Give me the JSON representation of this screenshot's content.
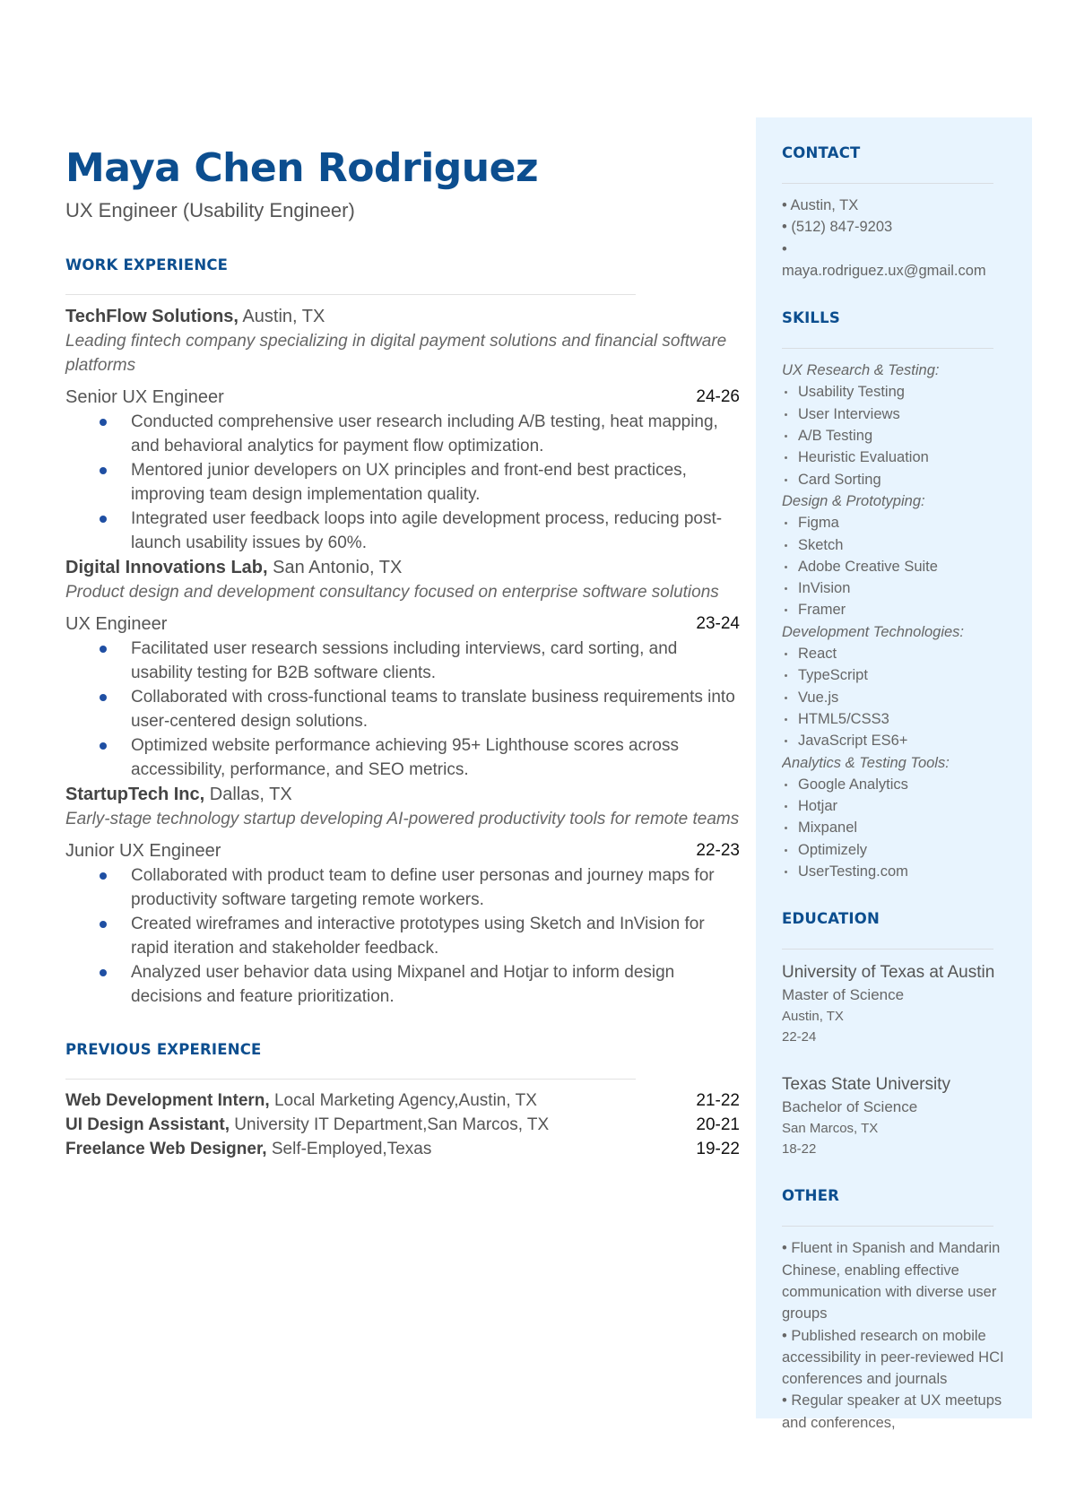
{
  "header": {
    "name": "Maya Chen Rodriguez",
    "title": "UX Engineer (Usability Engineer)"
  },
  "work_experience": {
    "title": "WORK EXPERIENCE",
    "jobs": [
      {
        "company": "TechFlow Solutions,",
        "location": " Austin, TX",
        "description": "Leading fintech company specializing in digital payment solutions and financial software platforms",
        "role": "Senior UX Engineer",
        "dates": "24-26",
        "bullets": [
          "Conducted comprehensive user research including A/B testing, heat mapping, and behavioral analytics for payment flow optimization.",
          "Mentored junior developers on UX principles and front-end best practices, improving team design implementation quality.",
          "Integrated user feedback loops into agile development process, reducing post-launch usability issues by 60%."
        ]
      },
      {
        "company": "Digital Innovations Lab,",
        "location": " San Antonio, TX",
        "description": "Product design and development consultancy focused on enterprise software solutions",
        "role": "UX Engineer",
        "dates": "23-24",
        "bullets": [
          "Facilitated user research sessions including interviews, card sorting, and usability testing for B2B software clients.",
          "Collaborated with cross-functional teams to translate business requirements into user-centered design solutions.",
          "Optimized website performance achieving 95+ Lighthouse scores across accessibility, performance, and SEO metrics."
        ]
      },
      {
        "company": "StartupTech Inc,",
        "location": " Dallas, TX",
        "description": "Early-stage technology startup developing AI-powered productivity tools for remote teams",
        "role": "Junior UX Engineer",
        "dates": "22-23",
        "bullets": [
          "Collaborated with product team to define user personas and journey maps for productivity software targeting remote workers.",
          "Created wireframes and interactive prototypes using Sketch and InVision for rapid iteration and stakeholder feedback.",
          "Analyzed user behavior data using Mixpanel and Hotjar to inform design decisions and feature prioritization."
        ]
      }
    ]
  },
  "previous_experience": {
    "title": "PREVIOUS EXPERIENCE",
    "rows": [
      {
        "role": "Web Development Intern,",
        "org": " Local Marketing Agency,Austin, TX",
        "dates": "21-22"
      },
      {
        "role": "UI Design Assistant,",
        "org": " University IT Department,San Marcos, TX",
        "dates": "20-21"
      },
      {
        "role": "Freelance Web Designer,",
        "org": " Self-Employed,Texas",
        "dates": "19-22"
      }
    ]
  },
  "sidebar": {
    "accent_bg": "#e8f4fe",
    "contact": {
      "title": "CONTACT",
      "location": "• Austin, TX",
      "phone": "• (512) 847-9203",
      "email_bullet": "•",
      "email": "maya.rodriguez.ux@gmail.com"
    },
    "skills": {
      "title": "SKILLS",
      "groups": [
        {
          "category": "UX Research & Testing:",
          "items": [
            "Usability Testing",
            "User Interviews",
            "A/B Testing",
            "Heuristic Evaluation",
            "Card Sorting"
          ]
        },
        {
          "category": "Design & Prototyping:",
          "items": [
            "Figma",
            "Sketch",
            "Adobe Creative Suite",
            "InVision",
            "Framer"
          ]
        },
        {
          "category": "Development Technologies:",
          "items": [
            "React",
            "TypeScript",
            "Vue.js",
            "HTML5/CSS3",
            "JavaScript ES6+"
          ]
        },
        {
          "category": "Analytics & Testing Tools:",
          "items": [
            "Google Analytics",
            "Hotjar",
            "Mixpanel",
            "Optimizely",
            "UserTesting.com"
          ]
        }
      ]
    },
    "education": {
      "title": "EDUCATION",
      "schools": [
        {
          "school": "University of Texas at Austin",
          "degree": "Master of Science",
          "location": "Austin, TX",
          "dates": "22-24"
        },
        {
          "school": "Texas State University",
          "degree": "Bachelor of Science",
          "location": "San Marcos, TX",
          "dates": "18-22"
        }
      ]
    },
    "other": {
      "title": "OTHER",
      "items": [
        "• Fluent in Spanish and Mandarin Chinese, enabling effective communication with diverse user groups",
        "• Published research on mobile accessibility in peer-reviewed HCI conferences and journals",
        "• Regular speaker at UX meetups and conferences,"
      ]
    }
  }
}
